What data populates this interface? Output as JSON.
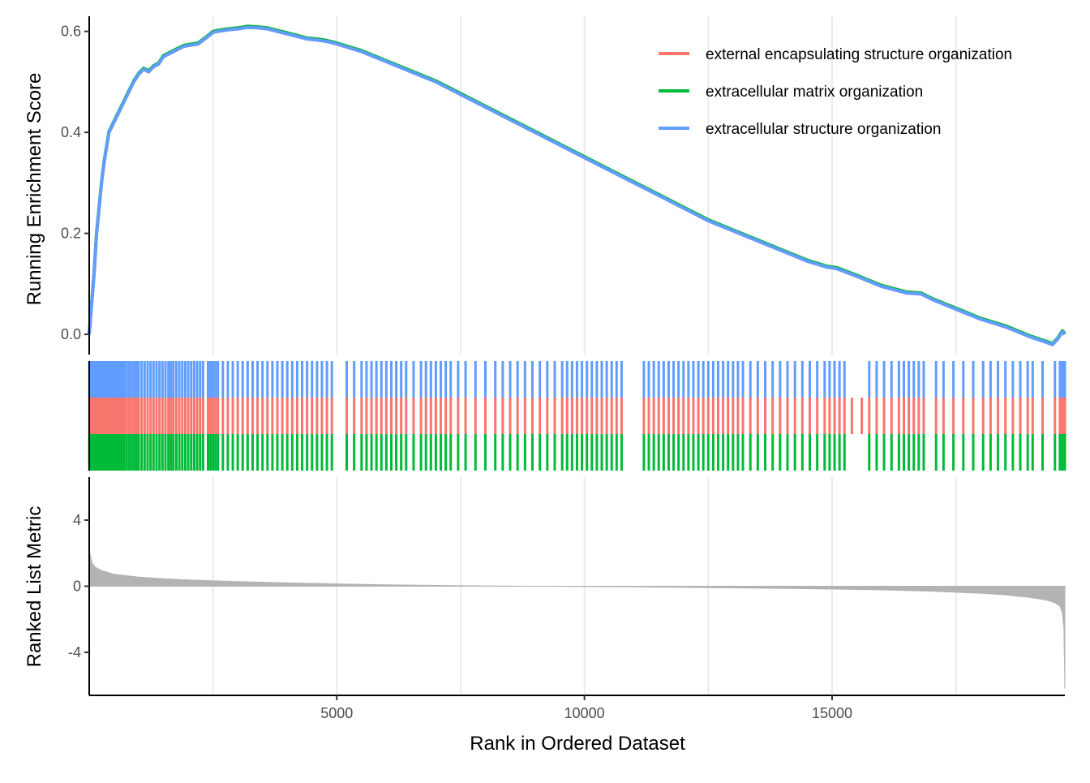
{
  "chart_data": {
    "type": "line",
    "title": "",
    "xlabel": "Rank in Ordered Dataset",
    "xlim": [
      1,
      19700
    ],
    "x_ticks": [
      {
        "value": 5000,
        "label": "5000"
      },
      {
        "value": 10000,
        "label": "10000"
      },
      {
        "value": 15000,
        "label": "15000"
      }
    ],
    "panels": {
      "running_score": {
        "ylabel": "Running Enrichment Score",
        "ylim": [
          -0.04,
          0.63
        ],
        "y_ticks": [
          {
            "value": 0.0,
            "label": "0.0"
          },
          {
            "value": 0.2,
            "label": "0.2"
          },
          {
            "value": 0.4,
            "label": "0.4"
          },
          {
            "value": 0.6,
            "label": "0.6"
          }
        ],
        "series": [
          {
            "name": "external encapsulating structure organization",
            "color": "#F8766D"
          },
          {
            "name": "extracellular matrix organization",
            "color": "#00BA38"
          },
          {
            "name": "extracellular structure organization",
            "color": "#619CFF"
          }
        ],
        "x": [
          1,
          50,
          100,
          150,
          200,
          250,
          300,
          350,
          400,
          500,
          600,
          700,
          800,
          900,
          1000,
          1100,
          1200,
          1300,
          1400,
          1500,
          1600,
          1700,
          1800,
          1900,
          2000,
          2200,
          2400,
          2500,
          2600,
          2800,
          3000,
          3200,
          3400,
          3600,
          3800,
          4000,
          4200,
          4400,
          4600,
          4800,
          5000,
          5500,
          6000,
          6500,
          7000,
          7500,
          8000,
          8500,
          9000,
          9500,
          10000,
          10500,
          11000,
          11500,
          12000,
          12500,
          13000,
          13500,
          14000,
          14500,
          14900,
          15100,
          15500,
          16000,
          16500,
          16800,
          17000,
          17500,
          18000,
          18500,
          19000,
          19300,
          19450,
          19550,
          19650,
          19700
        ],
        "y": [
          0.0,
          0.06,
          0.12,
          0.2,
          0.25,
          0.3,
          0.34,
          0.37,
          0.4,
          0.42,
          0.44,
          0.46,
          0.48,
          0.5,
          0.515,
          0.525,
          0.52,
          0.53,
          0.535,
          0.55,
          0.555,
          0.56,
          0.565,
          0.57,
          0.572,
          0.575,
          0.59,
          0.598,
          0.6,
          0.603,
          0.605,
          0.608,
          0.607,
          0.605,
          0.6,
          0.595,
          0.59,
          0.585,
          0.583,
          0.58,
          0.575,
          0.56,
          0.54,
          0.52,
          0.5,
          0.475,
          0.45,
          0.425,
          0.4,
          0.375,
          0.35,
          0.325,
          0.3,
          0.275,
          0.25,
          0.225,
          0.205,
          0.185,
          0.165,
          0.145,
          0.133,
          0.13,
          0.115,
          0.095,
          0.082,
          0.08,
          0.07,
          0.05,
          0.03,
          0.015,
          -0.005,
          -0.015,
          -0.02,
          -0.01,
          0.005,
          0.0
        ]
      },
      "hits": {
        "rows": [
          {
            "series": "extracellular structure organization",
            "color": "#619CFF"
          },
          {
            "series": "external encapsulating structure organization",
            "color": "#F8766D"
          },
          {
            "series": "extracellular matrix organization",
            "color": "#00BA38"
          }
        ],
        "positions": [
          5,
          20,
          40,
          60,
          80,
          100,
          125,
          150,
          175,
          200,
          230,
          260,
          290,
          320,
          350,
          380,
          420,
          460,
          500,
          540,
          580,
          620,
          660,
          700,
          750,
          800,
          850,
          900,
          950,
          1000,
          1060,
          1120,
          1180,
          1240,
          1300,
          1360,
          1420,
          1480,
          1540,
          1600,
          1650,
          1700,
          1760,
          1820,
          1880,
          1940,
          2000,
          2060,
          2120,
          2180,
          2240,
          2300,
          2400,
          2450,
          2500,
          2550,
          2600,
          2700,
          2800,
          2900,
          3000,
          3100,
          3200,
          3300,
          3400,
          3500,
          3600,
          3700,
          3800,
          3900,
          4000,
          4100,
          4200,
          4300,
          4400,
          4500,
          4600,
          4700,
          4800,
          4900,
          5200,
          5350,
          5500,
          5600,
          5700,
          5800,
          5900,
          6000,
          6100,
          6200,
          6300,
          6400,
          6550,
          6700,
          6800,
          6900,
          7000,
          7100,
          7200,
          7300,
          7450,
          7600,
          7800,
          8000,
          8200,
          8350,
          8500,
          8650,
          8800,
          8950,
          9100,
          9250,
          9400,
          9550,
          9650,
          9750,
          9850,
          9950,
          10050,
          10150,
          10250,
          10350,
          10450,
          10550,
          10650,
          10750,
          11200,
          11300,
          11400,
          11500,
          11600,
          11700,
          11800,
          11900,
          12000,
          12100,
          12200,
          12300,
          12400,
          12500,
          12600,
          12700,
          12800,
          12900,
          13000,
          13100,
          13200,
          13350,
          13500,
          13650,
          13800,
          13950,
          14100,
          14250,
          14400,
          14550,
          14700,
          14850,
          14950,
          15050,
          15150,
          15250,
          15400,
          15600,
          15750,
          15900,
          16050,
          16200,
          16350,
          16450,
          16550,
          16650,
          16750,
          16850,
          17100,
          17250,
          17450,
          17650,
          17850,
          18050,
          18200,
          18350,
          18500,
          18650,
          18800,
          18950,
          19050,
          19250,
          19500,
          19600,
          19650,
          19700
        ],
        "missing": {
          "extracellular structure organization": [
            15400,
            15600
          ],
          "extracellular matrix organization": [
            15400,
            15600
          ]
        }
      },
      "ranked_metric": {
        "ylabel": "Ranked List Metric",
        "ylim": [
          -6.6,
          6.6
        ],
        "y_ticks": [
          {
            "value": -4,
            "label": "-4"
          },
          {
            "value": 0,
            "label": "0"
          },
          {
            "value": 4,
            "label": "4"
          }
        ],
        "fill": "#B3B3B3",
        "x": [
          1,
          20,
          60,
          120,
          250,
          500,
          1000,
          1500,
          2000,
          3000,
          4000,
          5000,
          6000,
          7000,
          8000,
          9000,
          10000,
          11000,
          12000,
          13000,
          14000,
          15000,
          16000,
          17000,
          18000,
          18500,
          19000,
          19300,
          19500,
          19600,
          19650,
          19680,
          19700
        ],
        "values": [
          2.3,
          1.9,
          1.4,
          1.15,
          0.95,
          0.72,
          0.55,
          0.45,
          0.38,
          0.28,
          0.2,
          0.14,
          0.09,
          0.05,
          0.02,
          0.0,
          -0.02,
          -0.04,
          -0.07,
          -0.1,
          -0.13,
          -0.17,
          -0.22,
          -0.3,
          -0.42,
          -0.52,
          -0.68,
          -0.82,
          -1.0,
          -1.2,
          -1.6,
          -2.5,
          -6.2
        ]
      }
    },
    "grid": true,
    "legend_position": "top-right"
  }
}
